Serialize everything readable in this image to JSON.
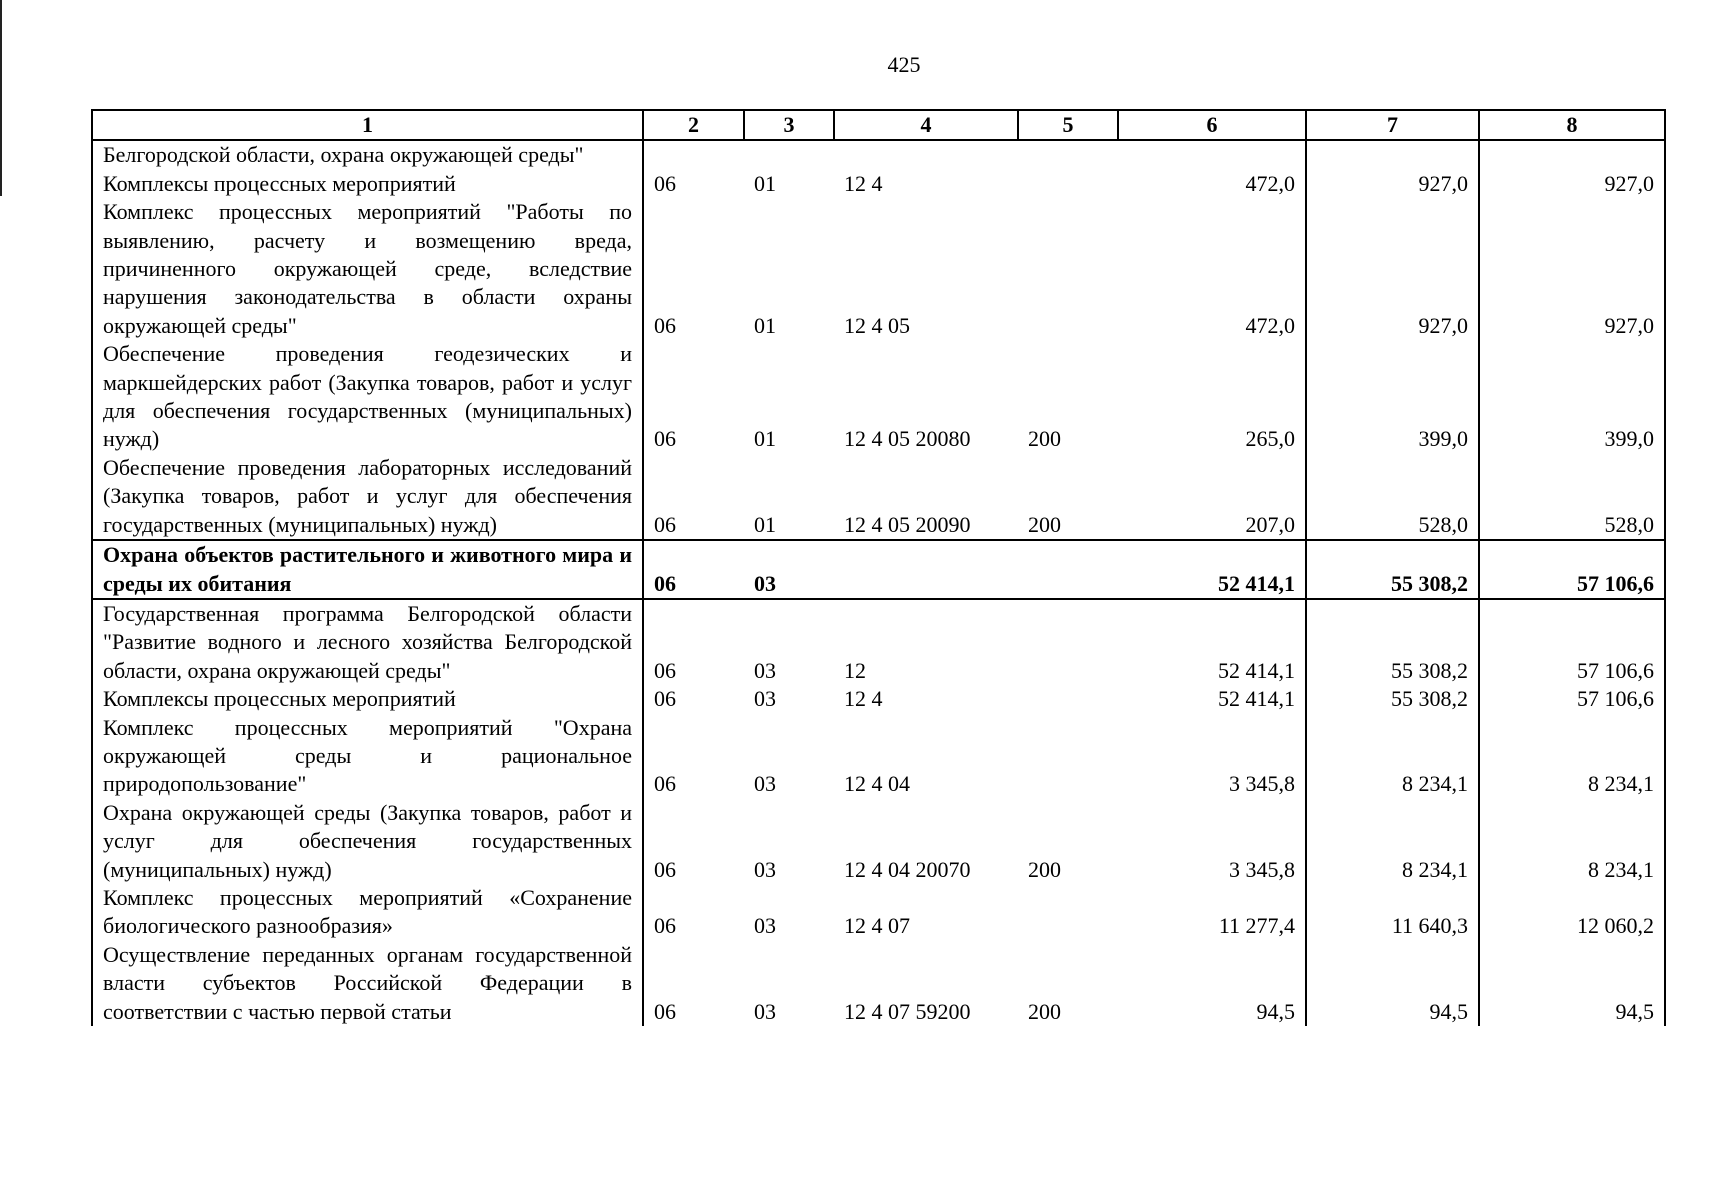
{
  "page_number": "425",
  "headers": [
    "1",
    "2",
    "3",
    "4",
    "5",
    "6",
    "7",
    "8"
  ],
  "rows": [
    {
      "name": "Белгородской области, охрана окружающей среды\"",
      "c2": "",
      "c3": "",
      "c4": "",
      "c5": "",
      "c6": "",
      "c7": "",
      "c8": ""
    },
    {
      "name": "Комплексы процессных мероприятий",
      "c2": "06",
      "c3": "01",
      "c4": "12 4",
      "c5": "",
      "c6": "472,0",
      "c7": "927,0",
      "c8": "927,0"
    },
    {
      "name": "Комплекс процессных мероприятий \"Работы по выявлению, расчету и возмещению вреда, причиненного окружающей среде, вследствие нарушения законодательства в области охраны окружающей среды\"",
      "c2": "06",
      "c3": "01",
      "c4": "12 4 05",
      "c5": "",
      "c6": "472,0",
      "c7": "927,0",
      "c8": "927,0"
    },
    {
      "name": "Обеспечение проведения геодезических и маркшейдерских работ (Закупка товаров, работ и услуг для обеспечения государственных (муниципальных) нужд)",
      "c2": "06",
      "c3": "01",
      "c4": "12 4 05 20080",
      "c5": "200",
      "c6": "265,0",
      "c7": "399,0",
      "c8": "399,0"
    },
    {
      "name": "Обеспечение проведения лабораторных исследований (Закупка товаров, работ и услуг для обеспечения государственных (муниципальных) нужд)",
      "c2": "06",
      "c3": "01",
      "c4": "12 4 05 20090",
      "c5": "200",
      "c6": "207,0",
      "c7": "528,0",
      "c8": "528,0"
    },
    {
      "name": "Охрана объектов растительного и животного мира и среды их обитания",
      "c2": "06",
      "c3": "03",
      "c4": "",
      "c5": "",
      "c6": "52 414,1",
      "c7": "55 308,2",
      "c8": "57 106,6",
      "bold": true
    },
    {
      "name": "Государственная программа Белгородской области \"Развитие водного и лесного хозяйства Белгородской области, охрана окружающей среды\"",
      "c2": "06",
      "c3": "03",
      "c4": "12",
      "c5": "",
      "c6": "52 414,1",
      "c7": "55 308,2",
      "c8": "57 106,6"
    },
    {
      "name": "Комплексы процессных мероприятий",
      "c2": "06",
      "c3": "03",
      "c4": "12 4",
      "c5": "",
      "c6": "52 414,1",
      "c7": "55 308,2",
      "c8": "57 106,6"
    },
    {
      "name": "Комплекс процессных мероприятий \"Охрана окружающей среды и рациональное природопользование\"",
      "c2": "06",
      "c3": "03",
      "c4": "12 4 04",
      "c5": "",
      "c6": "3 345,8",
      "c7": "8 234,1",
      "c8": "8 234,1"
    },
    {
      "name": "Охрана окружающей среды (Закупка товаров, работ и услуг для обеспечения государственных (муниципальных) нужд)",
      "c2": "06",
      "c3": "03",
      "c4": "12 4 04 20070",
      "c5": "200",
      "c6": "3 345,8",
      "c7": "8 234,1",
      "c8": "8 234,1"
    },
    {
      "name": "Комплекс процессных мероприятий «Сохранение биологического разнообразия»",
      "c2": "06",
      "c3": "03",
      "c4": "12 4 07",
      "c5": "",
      "c6": "11 277,4",
      "c7": "11 640,3",
      "c8": "12 060,2"
    },
    {
      "name": "Осуществление переданных органам государственной власти субъектов Российской Федерации в соответствии с частью первой статьи",
      "c2": "06",
      "c3": "03",
      "c4": "12 4 07 59200",
      "c5": "200",
      "c6": "94,5",
      "c7": "94,5",
      "c8": "94,5"
    }
  ]
}
